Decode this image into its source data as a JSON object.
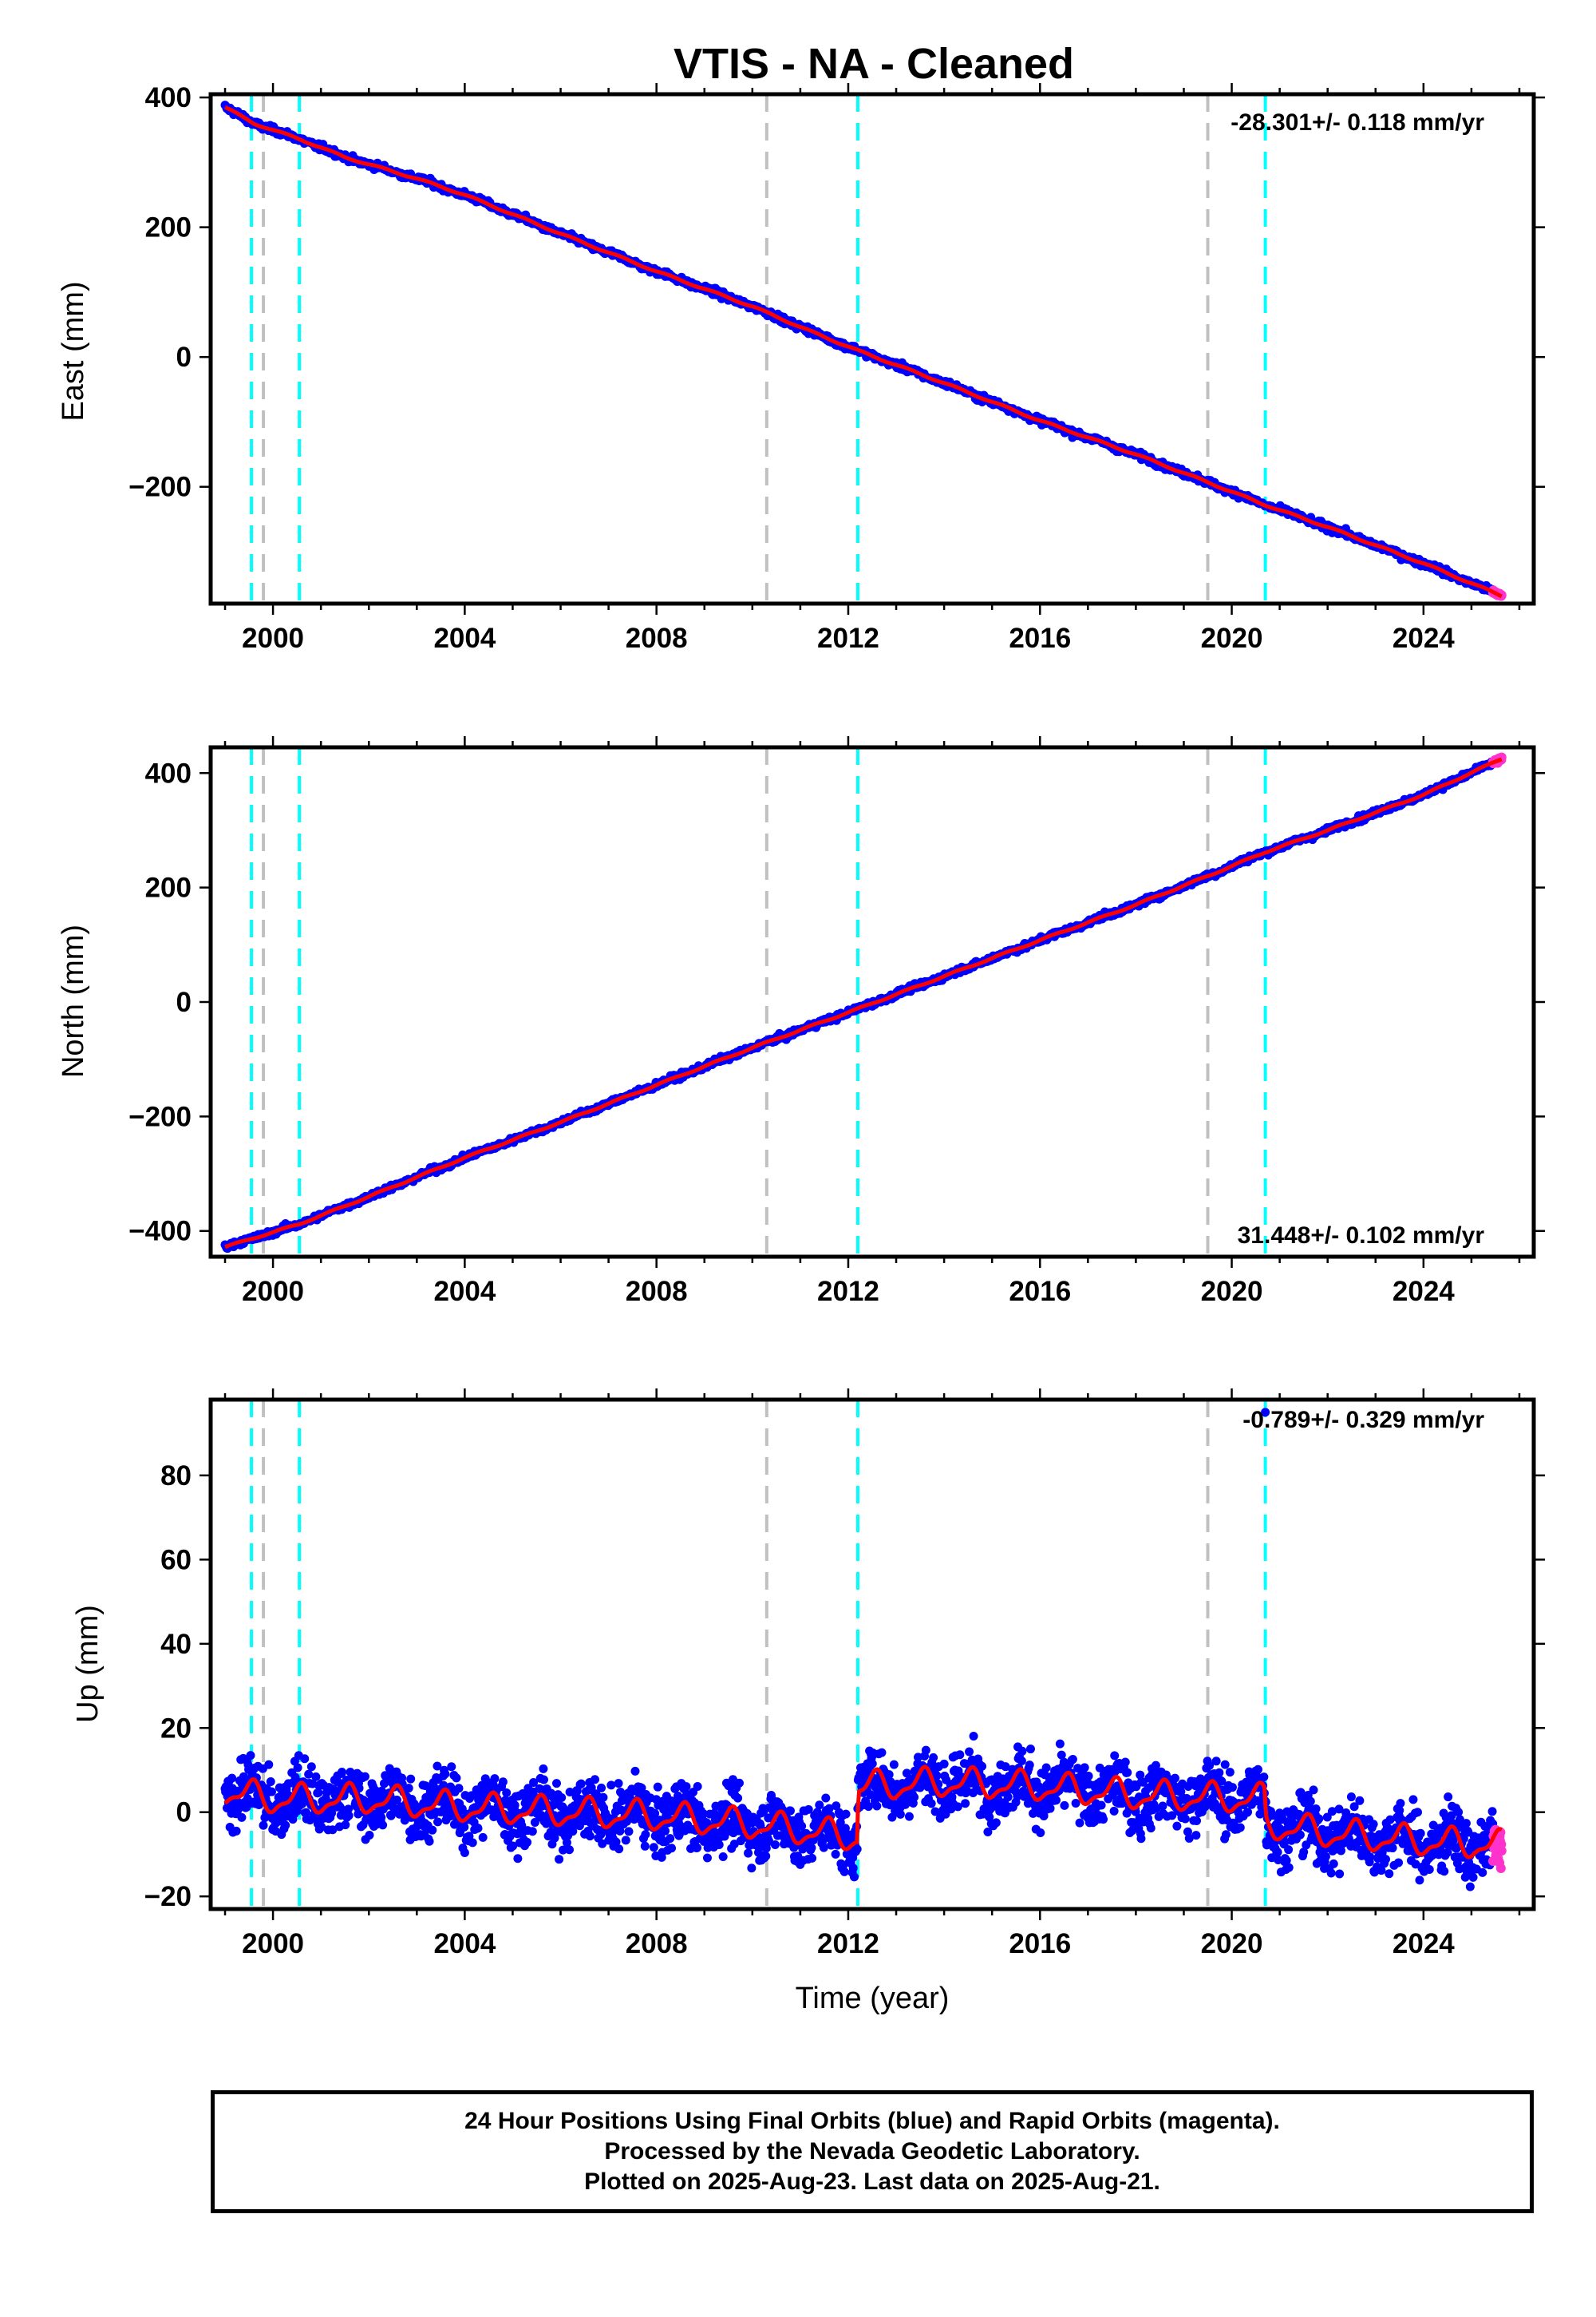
{
  "title": "VTIS  - NA - Cleaned",
  "xlabel": "Time (year)",
  "footer": {
    "line1": "24 Hour Positions Using Final Orbits (blue) and Rapid Orbits (magenta).",
    "line2": "Processed by the Nevada Geodetic Laboratory.",
    "line3": "Plotted on 2025-Aug-23. Last data on 2025-Aug-21."
  },
  "colors": {
    "final_orbits": "#0000ff",
    "rapid_orbits": "#ff33cc",
    "model_fit": "#ff0000",
    "cyan_lines": "#00ffff",
    "gray_lines": "#c0c0c0"
  },
  "chart_data": [
    {
      "type": "scatter",
      "panel": "east",
      "ylabel": "East (mm)",
      "xlim": [
        1998.7,
        2026.3
      ],
      "ylim": [
        -380,
        405
      ],
      "xticks": [
        2000,
        2004,
        2008,
        2012,
        2016,
        2020,
        2024
      ],
      "yticks": [
        -200,
        0,
        200,
        400
      ],
      "rate_text": "-28.301+/- 0.118 mm/yr",
      "rate_position": "top-right",
      "start": {
        "x": 1999.0,
        "y": 385
      },
      "end": {
        "x": 2025.63,
        "y": -368
      },
      "cyan_lines": [
        1999.55,
        2000.55,
        2012.2,
        2020.7
      ],
      "gray_lines": [
        1999.8,
        2010.3,
        2019.5
      ],
      "series": [
        {
          "values": [
            [
              1999.0,
              385
            ],
            [
              1999.6,
              360
            ],
            [
              2000.55,
              336
            ],
            [
              2001.5,
              308
            ],
            [
              2003,
              275
            ],
            [
              2004,
              250
            ],
            [
              2006,
              190
            ],
            [
              2008,
              132
            ],
            [
              2010,
              78
            ],
            [
              2011.2,
              40
            ],
            [
              2012.2,
              10
            ],
            [
              2014,
              -40
            ],
            [
              2016,
              -98
            ],
            [
              2018,
              -150
            ],
            [
              2019.5,
              -193
            ],
            [
              2020.7,
              -228
            ],
            [
              2022,
              -262
            ],
            [
              2024,
              -318
            ],
            [
              2025.63,
              -368
            ]
          ]
        }
      ]
    },
    {
      "type": "scatter",
      "panel": "north",
      "ylabel": "North (mm)",
      "xlim": [
        1998.7,
        2026.3
      ],
      "ylim": [
        -445,
        445
      ],
      "xticks": [
        2000,
        2004,
        2008,
        2012,
        2016,
        2020,
        2024
      ],
      "yticks": [
        -400,
        -200,
        0,
        200,
        400
      ],
      "rate_text": "31.448+/- 0.102 mm/yr",
      "rate_position": "bottom-right",
      "start": {
        "x": 1999.0,
        "y": -428
      },
      "end": {
        "x": 2025.63,
        "y": 425
      },
      "cyan_lines": [
        1999.55,
        2000.55,
        2012.2,
        2020.7
      ],
      "gray_lines": [
        1999.8,
        2010.3,
        2019.5
      ],
      "series": [
        {
          "values": [
            [
              1999.0,
              -428
            ],
            [
              2000.55,
              -388
            ],
            [
              2002,
              -340
            ],
            [
              2004,
              -272
            ],
            [
              2006,
              -210
            ],
            [
              2008,
              -145
            ],
            [
              2010,
              -80
            ],
            [
              2012.2,
              -12
            ],
            [
              2014,
              45
            ],
            [
              2016,
              108
            ],
            [
              2018,
              170
            ],
            [
              2019.5,
              220
            ],
            [
              2020.7,
              262
            ],
            [
              2022,
              300
            ],
            [
              2024,
              362
            ],
            [
              2025.63,
              425
            ]
          ]
        }
      ]
    },
    {
      "type": "scatter",
      "panel": "up",
      "ylabel": "Up (mm)",
      "xlim": [
        1998.7,
        2026.3
      ],
      "ylim": [
        -23,
        98
      ],
      "xticks": [
        2000,
        2004,
        2008,
        2012,
        2016,
        2020,
        2024
      ],
      "yticks": [
        -20,
        0,
        20,
        40,
        60,
        80
      ],
      "rate_text": "-0.789+/- 0.329 mm/yr",
      "rate_position": "top-right",
      "outlier": {
        "x": 2020.7,
        "y": 95
      },
      "cyan_lines": [
        1999.55,
        2000.55,
        2012.2,
        2020.7
      ],
      "gray_lines": [
        1999.8,
        2010.3,
        2019.5
      ],
      "series": [
        {
          "values": [
            [
              1999.0,
              5
            ],
            [
              2000,
              3
            ],
            [
              2002,
              3
            ],
            [
              2004,
              1
            ],
            [
              2006,
              0
            ],
            [
              2008,
              -1
            ],
            [
              2010,
              -3
            ],
            [
              2012.19,
              -6
            ],
            [
              2012.21,
              6
            ],
            [
              2014,
              7
            ],
            [
              2016,
              6
            ],
            [
              2018,
              4
            ],
            [
              2020.69,
              3
            ],
            [
              2020.71,
              -3
            ],
            [
              2022,
              -5
            ],
            [
              2024,
              -7
            ],
            [
              2025.63,
              -8
            ]
          ]
        }
      ]
    }
  ]
}
